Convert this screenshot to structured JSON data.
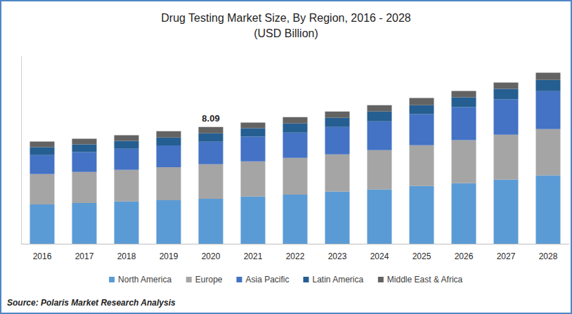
{
  "chart_data": {
    "type": "bar",
    "title": "Drug Testing Market Size, By Region, 2016 - 2028",
    "subtitle": "(USD Billion)",
    "source": "Source: Polaris Market Research Analysis",
    "categories": [
      "2016",
      "2017",
      "2018",
      "2019",
      "2020",
      "2021",
      "2022",
      "2023",
      "2024",
      "2025",
      "2026",
      "2027",
      "2028"
    ],
    "series": [
      {
        "name": "North America",
        "color": "#5b9bd5",
        "values": [
          2.73,
          2.83,
          2.93,
          3.02,
          3.12,
          3.27,
          3.41,
          3.61,
          3.76,
          4.0,
          4.2,
          4.44,
          4.73
        ]
      },
      {
        "name": "Europe",
        "color": "#a5a5a5",
        "values": [
          2.1,
          2.15,
          2.2,
          2.29,
          2.39,
          2.44,
          2.54,
          2.59,
          2.73,
          2.83,
          2.98,
          3.12,
          3.22
        ]
      },
      {
        "name": "Asia Pacific",
        "color": "#4472c4",
        "values": [
          1.32,
          1.37,
          1.46,
          1.51,
          1.56,
          1.71,
          1.76,
          1.9,
          2.0,
          2.15,
          2.29,
          2.44,
          2.63
        ]
      },
      {
        "name": "Latin America",
        "color": "#255e91",
        "values": [
          0.54,
          0.54,
          0.54,
          0.54,
          0.59,
          0.59,
          0.63,
          0.63,
          0.68,
          0.63,
          0.68,
          0.73,
          0.78
        ]
      },
      {
        "name": "Middle East & Africa",
        "color": "#636363",
        "values": [
          0.39,
          0.39,
          0.39,
          0.44,
          0.43,
          0.39,
          0.44,
          0.44,
          0.44,
          0.49,
          0.44,
          0.44,
          0.49
        ]
      }
    ],
    "annotations": [
      {
        "x": "2020",
        "y": 8.09,
        "text": "8.09"
      }
    ],
    "ylim": [
      0,
      13
    ],
    "stacked": true,
    "grid": false,
    "legend": "bottom",
    "tick_labels": "x"
  }
}
